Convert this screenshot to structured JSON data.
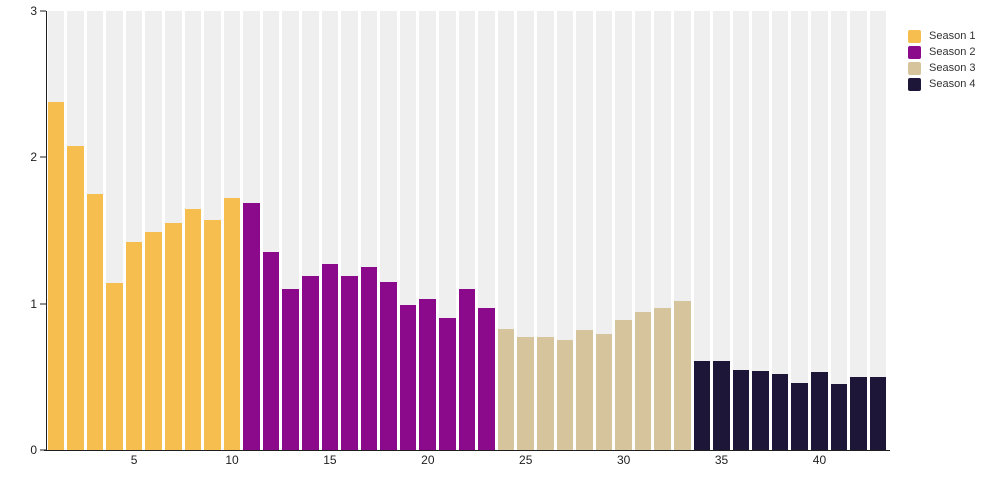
{
  "chart_data": {
    "type": "bar",
    "title": "",
    "categories": [
      1,
      2,
      3,
      4,
      5,
      6,
      7,
      8,
      9,
      10,
      11,
      12,
      13,
      14,
      15,
      16,
      17,
      18,
      19,
      20,
      21,
      22,
      23,
      24,
      25,
      26,
      27,
      28,
      29,
      30,
      31,
      32,
      33,
      34,
      35,
      36,
      37,
      38,
      39,
      40,
      41,
      42,
      43
    ],
    "series": [
      {
        "name": "Season 1",
        "color": "#F6BE4E",
        "values": [
          2.38,
          2.08,
          1.75,
          1.14,
          1.42,
          1.49,
          1.55,
          1.65,
          1.57,
          1.72
        ]
      },
      {
        "name": "Season 2",
        "color": "#8B0A8B",
        "values": [
          1.69,
          1.35,
          1.1,
          1.19,
          1.27,
          1.19,
          1.25,
          1.15,
          0.99,
          1.03,
          0.9,
          1.1,
          0.97
        ]
      },
      {
        "name": "Season 3",
        "color": "#D6C49D",
        "values": [
          0.83,
          0.77,
          0.77,
          0.75,
          0.82,
          0.79,
          0.89,
          0.94,
          0.97,
          1.02
        ]
      },
      {
        "name": "Season 4",
        "color": "#1E1638",
        "values": [
          0.61,
          0.61,
          0.55,
          0.54,
          0.52,
          0.46,
          0.53,
          0.45,
          0.5,
          0.5
        ]
      }
    ],
    "xlabel": "",
    "ylabel": "",
    "ylim": [
      0,
      3
    ],
    "yticks": [
      0,
      1,
      2,
      3
    ],
    "xticks": [
      5,
      10,
      15,
      20,
      25,
      30,
      35,
      40
    ],
    "grid": false,
    "legend_position": "top-right",
    "plot_background": "striped",
    "stripe_color": "#EFEFEF",
    "axis_color": "#1F1F1F"
  }
}
